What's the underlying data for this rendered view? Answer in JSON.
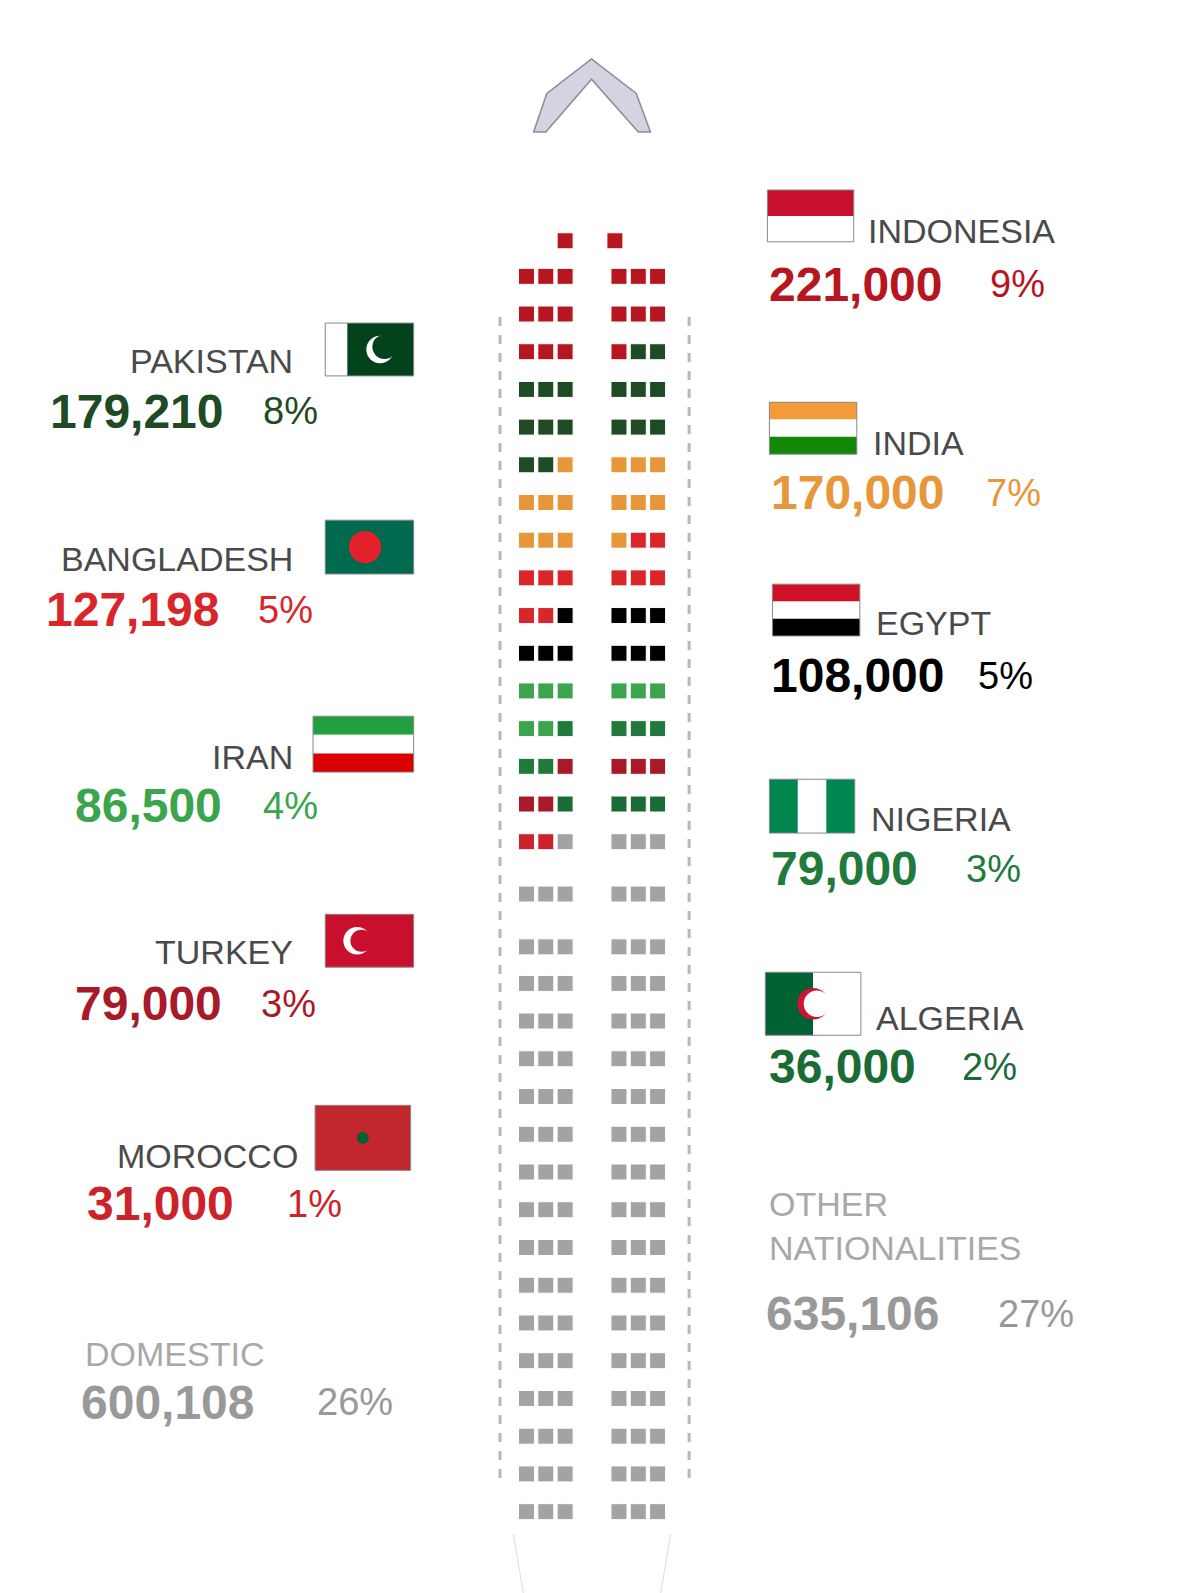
{
  "chart_data": {
    "type": "unit",
    "categories": [
      "INDONESIA",
      "PAKISTAN",
      "INDIA",
      "BANGLADESH",
      "EGYPT",
      "IRAN",
      "NIGERIA",
      "TURKEY",
      "ALGERIA",
      "MOROCCO",
      "OTHER NATIONALITIES",
      "DOMESTIC"
    ],
    "values": [
      221000,
      179210,
      170000,
      127198,
      108000,
      86500,
      79000,
      79000,
      36000,
      31000,
      635106,
      600108
    ],
    "value_labels": [
      "221,000",
      "179,210",
      "170,000",
      "127,198",
      "108,000",
      "86,500",
      "79,000",
      "79,000",
      "36,000",
      "31,000",
      "635,106",
      "600,108"
    ],
    "percents": [
      9,
      8,
      7,
      5,
      5,
      4,
      3,
      3,
      2,
      1,
      27,
      26
    ],
    "percent_labels": [
      "9%",
      "8%",
      "7%",
      "5%",
      "5%",
      "4%",
      "3%",
      "3%",
      "2%",
      "1%",
      "27%",
      "26%"
    ],
    "colors": [
      "#b5161f",
      "#1e4a24",
      "#e8963a",
      "#d9262a",
      "#000000",
      "#3aa54c",
      "#1f7a3b",
      "#a8192a",
      "#1a6b35",
      "#cc2229",
      "#a3a3a3",
      "#a3a3a3"
    ],
    "tick_labels": false
  }
}
